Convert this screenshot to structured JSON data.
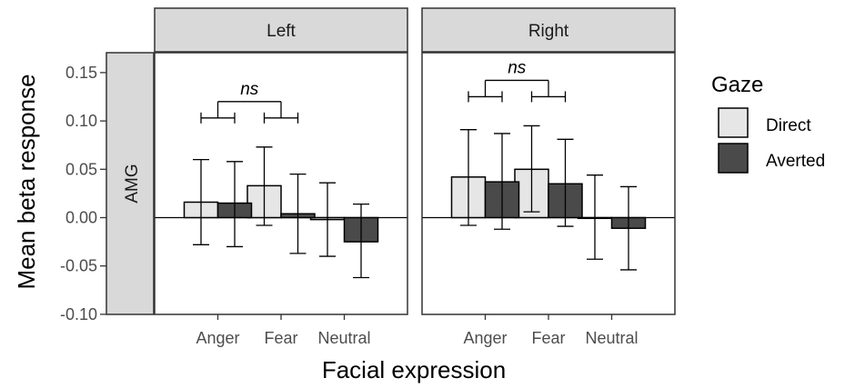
{
  "chart_data": {
    "type": "bar",
    "xlabel": "Facial expression",
    "ylabel": "Mean beta response",
    "row_strip": "AMG",
    "ylim": [
      -0.1,
      0.17
    ],
    "yticks": [
      "0.15",
      "0.10",
      "0.05",
      "0.00",
      "-0.05",
      "-0.10"
    ],
    "ytick_values": [
      0.15,
      0.1,
      0.05,
      0.0,
      -0.05,
      -0.1
    ],
    "categories": [
      "Anger",
      "Fear",
      "Neutral"
    ],
    "legend": {
      "title": "Gaze",
      "position": "right",
      "entries": [
        {
          "name": "Direct",
          "color": "#e6e6e6"
        },
        {
          "name": "Averted",
          "color": "#4a4a4a"
        }
      ]
    },
    "panels": [
      {
        "name": "Left",
        "series": [
          {
            "name": "Direct",
            "values": [
              0.016,
              0.033,
              -0.002
            ],
            "err_low": [
              -0.028,
              -0.008,
              -0.04
            ],
            "err_high": [
              0.06,
              0.073,
              0.036
            ]
          },
          {
            "name": "Averted",
            "values": [
              0.015,
              0.004,
              -0.025
            ],
            "err_low": [
              -0.03,
              -0.037,
              -0.062
            ],
            "err_high": [
              0.058,
              0.045,
              0.014
            ]
          }
        ],
        "annotation": {
          "text": "ns",
          "between": [
            "Anger",
            "Fear"
          ]
        }
      },
      {
        "name": "Right",
        "series": [
          {
            "name": "Direct",
            "values": [
              0.042,
              0.05,
              0.0
            ],
            "err_low": [
              -0.008,
              0.006,
              -0.043
            ],
            "err_high": [
              0.091,
              0.095,
              0.044
            ]
          },
          {
            "name": "Averted",
            "values": [
              0.037,
              0.035,
              -0.011
            ],
            "err_low": [
              -0.012,
              -0.009,
              -0.054
            ],
            "err_high": [
              0.087,
              0.081,
              0.032
            ]
          }
        ],
        "annotation": {
          "text": "ns",
          "between": [
            "Anger",
            "Fear"
          ]
        }
      }
    ]
  }
}
